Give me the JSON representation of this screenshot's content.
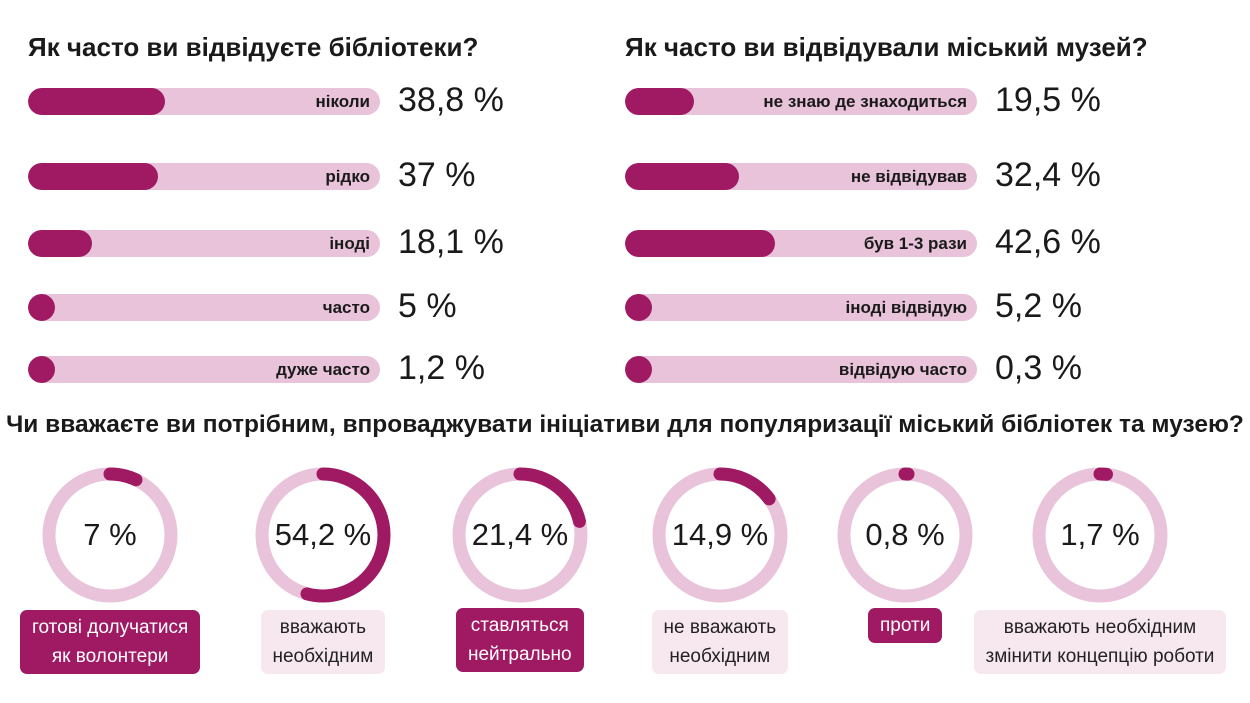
{
  "chart_data": [
    {
      "type": "bar",
      "title": "Як часто ви відвідуєте бібліотеки?",
      "categories": [
        "ніколи",
        "рідко",
        "іноді",
        "часто",
        "дуже часто"
      ],
      "values": [
        38.8,
        37,
        18.1,
        5,
        1.2
      ],
      "value_labels": [
        "38,8 %",
        "37 %",
        "18,1 %",
        "5 %",
        "1,2 %"
      ],
      "xlim": [
        0,
        100
      ],
      "orientation": "horizontal"
    },
    {
      "type": "bar",
      "title": "Як часто ви відвідували міський музей?",
      "categories": [
        "не знаю де знаходиться",
        "не відвідував",
        "був 1-3 рази",
        "іноді відвідую",
        "відвідую часто"
      ],
      "values": [
        19.5,
        32.4,
        42.6,
        5.2,
        0.3
      ],
      "value_labels": [
        "19,5 %",
        "32,4 %",
        "42,6 %",
        "5,2 %",
        "0,3 %"
      ],
      "xlim": [
        0,
        100
      ],
      "orientation": "horizontal"
    },
    {
      "type": "pie",
      "title": "Чи вважаєте ви потрібним, впроваджувати ініціативи для популяризації міський бібліотек та музею?",
      "categories": [
        "готові долучатися\nяк волонтери",
        "вважають\nнеобхідним",
        "ставляться\nнейтрально",
        "не вважають\nнеобхідним",
        "проти",
        "вважають необхідним\nзмінити концепцію роботи"
      ],
      "values": [
        7,
        54.2,
        21.4,
        14.9,
        0.8,
        1.7
      ],
      "value_labels": [
        "7 %",
        "54,2 %",
        "21,4 %",
        "14,9 %",
        "0,8 %",
        "1,7 %"
      ],
      "badge_styles": [
        "dark",
        "light",
        "dark",
        "light",
        "dark",
        "light"
      ]
    }
  ],
  "colors": {
    "accent": "#a01a63",
    "track": "#e8c3d9",
    "badge_light": "#f7e8f0"
  }
}
